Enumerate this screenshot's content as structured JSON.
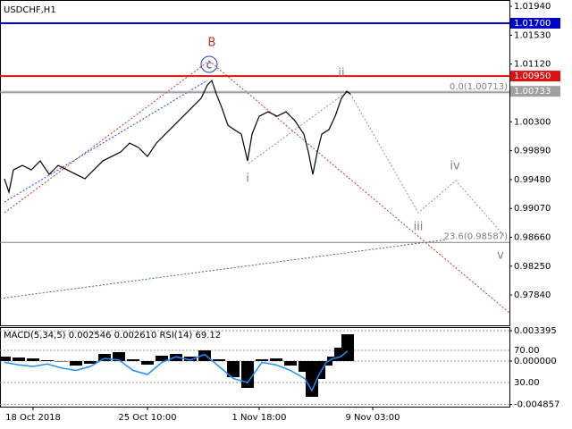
{
  "chart_data": [
    {
      "type": "line",
      "title": "USDCHF,H1",
      "x": [
        5,
        10,
        15,
        25,
        35,
        45,
        55,
        65,
        75,
        85,
        95,
        105,
        115,
        125,
        135,
        145,
        155,
        165,
        175,
        185,
        195,
        205,
        215,
        225,
        232,
        237,
        242,
        248,
        255,
        262,
        270,
        277,
        282,
        290,
        300,
        310,
        320,
        330,
        340,
        345,
        350,
        355,
        360,
        368,
        375,
        382,
        388,
        392
      ],
      "series": [
        {
          "color": "#000000",
          "values": [
            0.99491,
            0.99301,
            0.99618,
            0.99681,
            0.99618,
            0.99745,
            0.99554,
            0.99681,
            0.99618,
            0.99554,
            0.99491,
            0.99618,
            0.99745,
            0.99808,
            0.99872,
            0.99998,
            0.99935,
            0.99808,
            0.99998,
            1.00125,
            1.00252,
            1.00379,
            1.00506,
            1.00633,
            1.00823,
            1.00887,
            1.00696,
            1.00506,
            1.00252,
            1.00189,
            1.00125,
            0.99745,
            1.00125,
            1.00379,
            1.00443,
            1.00379,
            1.00443,
            1.00316,
            1.00125,
            0.99872,
            0.99554,
            0.99872,
            1.00125,
            1.00189,
            1.00379,
            1.00633,
            1.00734,
            1.00696
          ]
        }
      ],
      "xlim": [
        0,
        570
      ],
      "ylim": [
        0.9741,
        1.0203
      ],
      "yticks": [
        {
          "value": 1.0194,
          "label": "1.01940"
        },
        {
          "value": 1.0153,
          "label": "1.01530"
        },
        {
          "value": 1.0112,
          "label": "1.01120"
        },
        {
          "value": 1.003,
          "label": "1.00300"
        },
        {
          "value": 0.9989,
          "label": "0.99890"
        },
        {
          "value": 0.9948,
          "label": "0.99480"
        },
        {
          "value": 0.9907,
          "label": "0.99070"
        },
        {
          "value": 0.9866,
          "label": "0.98660"
        },
        {
          "value": 0.9825,
          "label": "0.98250"
        },
        {
          "value": 0.9784,
          "label": "0.97840"
        }
      ],
      "levels": [
        {
          "value": 1.017,
          "label": "1.01700",
          "color": "#0000cc"
        },
        {
          "value": 1.0095,
          "label": "1.00950",
          "color": "#e01010"
        },
        {
          "value": 1.00733,
          "label": "1.00733",
          "color": "#a0a0a0"
        }
      ],
      "fib_levels": [
        {
          "value": 1.00713,
          "label": "0.0(1.00713)"
        },
        {
          "value": 0.98587,
          "label": "23.6(0.98587)"
        }
      ],
      "wave_labels": [
        "B",
        "c",
        "i",
        "ii",
        "iii",
        "iv",
        "v"
      ]
    },
    {
      "type": "macd",
      "title": "MACD(5,34,5) 0.002546 0.002610 RSI(14) 69.12",
      "x": [
        5,
        21,
        37,
        53,
        69,
        85,
        101,
        117,
        133,
        149,
        165,
        181,
        197,
        213,
        229,
        245,
        261,
        277,
        293,
        309,
        325,
        341,
        349,
        357,
        365,
        373,
        381,
        389
      ],
      "series": [
        {
          "color": "#000000",
          "values": [
            0.0005,
            0.0004,
            0.0003,
            0.0001,
            0,
            -0.0005,
            -0.0003,
            0.0008,
            0.001,
            0.0002,
            -0.0004,
            0.0006,
            0.0008,
            0.0005,
            0.0012,
            0.0002,
            -0.0018,
            -0.003,
            0.0002,
            0.0003,
            -0.0005,
            -0.0012,
            -0.004,
            -0.002,
            -0.0005,
            0.0005,
            0.0015,
            0.003
          ]
        },
        {
          "color": "#1e90ff",
          "axis": "y2",
          "values": [
            55,
            52,
            50,
            53,
            48,
            45,
            50,
            60,
            58,
            45,
            40,
            55,
            62,
            58,
            65,
            50,
            35,
            30,
            55,
            52,
            45,
            35,
            20,
            40,
            55,
            60,
            62,
            69.12
          ]
        }
      ],
      "xlim": [
        0,
        570
      ],
      "ylim": [
        -0.0051,
        0.0038
      ],
      "y2lim": [
        0,
        98.9
      ],
      "yticks": [
        {
          "value": 0.003395,
          "label": "0.003395"
        },
        {
          "value": 0,
          "label": "0.000000"
        },
        {
          "value": -0.004857,
          "label": "-0.004857"
        }
      ],
      "y2ticks": [
        {
          "value": 70,
          "label": "70.00"
        },
        {
          "value": 30,
          "label": "30.00"
        }
      ],
      "xticks": [
        {
          "value": 37,
          "label": "18 Oct 2018"
        },
        {
          "value": 165,
          "label": "25 Oct 10:00"
        },
        {
          "value": 290,
          "label": "1 Nov 18:00"
        },
        {
          "value": 417,
          "label": "9 Nov 03:00"
        }
      ]
    }
  ]
}
